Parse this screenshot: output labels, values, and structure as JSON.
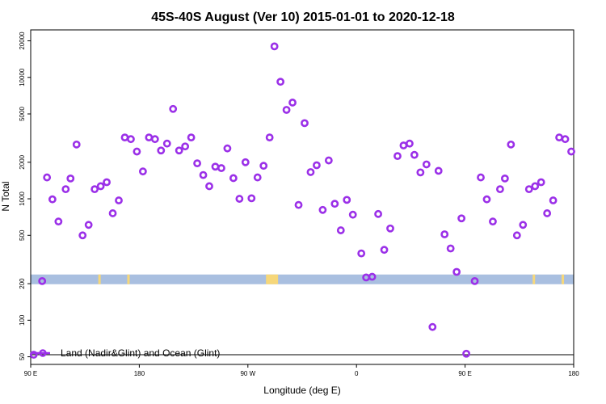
{
  "chart_data": {
    "type": "scatter",
    "title": "45S-40S August (Ver 10)   2015-01-01 to 2020-12-18",
    "xlabel": "Longitude (deg E)",
    "ylabel": "N Total",
    "x_ticks": [
      {
        "value": 90,
        "label": "90 E"
      },
      {
        "value": 180,
        "label": "180"
      },
      {
        "value": 270,
        "label": "90 W"
      },
      {
        "value": 360,
        "label": "0"
      },
      {
        "value": 450,
        "label": "90 E"
      },
      {
        "value": 540,
        "label": "180"
      }
    ],
    "xlim": [
      90,
      540
    ],
    "y_scale": "log",
    "y_ticks": [
      50,
      100,
      200,
      500,
      1000,
      2000,
      5000,
      10000,
      20000
    ],
    "ylim": [
      46,
      23500
    ],
    "x_unit": "deg E, continuous across 360",
    "point_color": "#9b30e8",
    "series": [
      {
        "name": "Land (Nadir&Glint) and Ocean (Glint)",
        "color": "#9b30e8",
        "points": [
          {
            "x": 92.5,
            "y": 52
          },
          {
            "x": 99.5,
            "y": 210
          },
          {
            "x": 103.5,
            "y": 1500
          },
          {
            "x": 108,
            "y": 990
          },
          {
            "x": 113,
            "y": 650
          },
          {
            "x": 119,
            "y": 1200
          },
          {
            "x": 123,
            "y": 1470
          },
          {
            "x": 128,
            "y": 2800
          },
          {
            "x": 133,
            "y": 500
          },
          {
            "x": 138,
            "y": 610
          },
          {
            "x": 143,
            "y": 1200
          },
          {
            "x": 148,
            "y": 1270
          },
          {
            "x": 153,
            "y": 1370
          },
          {
            "x": 158,
            "y": 760
          },
          {
            "x": 163,
            "y": 970
          },
          {
            "x": 168,
            "y": 3200
          },
          {
            "x": 173,
            "y": 3100
          },
          {
            "x": 178,
            "y": 2450
          },
          {
            "x": 183,
            "y": 1680
          },
          {
            "x": 188,
            "y": 3200
          },
          {
            "x": 193,
            "y": 3100
          },
          {
            "x": 198,
            "y": 2500
          },
          {
            "x": 203,
            "y": 2850
          },
          {
            "x": 208,
            "y": 5500
          },
          {
            "x": 213,
            "y": 2500
          },
          {
            "x": 218,
            "y": 2700
          },
          {
            "x": 223,
            "y": 3200
          },
          {
            "x": 228,
            "y": 1960
          },
          {
            "x": 233,
            "y": 1570
          },
          {
            "x": 238,
            "y": 1270
          },
          {
            "x": 243,
            "y": 1840
          },
          {
            "x": 248,
            "y": 1790
          },
          {
            "x": 253,
            "y": 2600
          },
          {
            "x": 258,
            "y": 1480
          },
          {
            "x": 263,
            "y": 1000
          },
          {
            "x": 268,
            "y": 2000
          },
          {
            "x": 273,
            "y": 1010
          },
          {
            "x": 278,
            "y": 1500
          },
          {
            "x": 283,
            "y": 1870
          },
          {
            "x": 288,
            "y": 3200
          },
          {
            "x": 292,
            "y": 18000
          },
          {
            "x": 297,
            "y": 9200
          },
          {
            "x": 302,
            "y": 5400
          },
          {
            "x": 307,
            "y": 6200
          },
          {
            "x": 312,
            "y": 890
          },
          {
            "x": 317,
            "y": 4200
          },
          {
            "x": 322,
            "y": 1660
          },
          {
            "x": 327,
            "y": 1890
          },
          {
            "x": 332,
            "y": 810
          },
          {
            "x": 337,
            "y": 2070
          },
          {
            "x": 342,
            "y": 910
          },
          {
            "x": 347,
            "y": 550
          },
          {
            "x": 352,
            "y": 980
          },
          {
            "x": 357,
            "y": 740
          },
          {
            "x": 364,
            "y": 355
          },
          {
            "x": 368,
            "y": 225
          },
          {
            "x": 373,
            "y": 228
          },
          {
            "x": 378,
            "y": 750
          },
          {
            "x": 383,
            "y": 380
          },
          {
            "x": 388,
            "y": 570
          },
          {
            "x": 394,
            "y": 2250
          },
          {
            "x": 399,
            "y": 2750
          },
          {
            "x": 404,
            "y": 2850
          },
          {
            "x": 408,
            "y": 2300
          },
          {
            "x": 413,
            "y": 1650
          },
          {
            "x": 418,
            "y": 1920
          },
          {
            "x": 423,
            "y": 88
          },
          {
            "x": 428,
            "y": 1700
          },
          {
            "x": 433,
            "y": 510
          },
          {
            "x": 438,
            "y": 390
          },
          {
            "x": 443,
            "y": 250
          },
          {
            "x": 447,
            "y": 690
          },
          {
            "x": 451,
            "y": 53
          },
          {
            "x": 458,
            "y": 210
          },
          {
            "x": 463,
            "y": 1500
          },
          {
            "x": 468,
            "y": 990
          },
          {
            "x": 473,
            "y": 650
          },
          {
            "x": 479,
            "y": 1200
          },
          {
            "x": 483,
            "y": 1470
          },
          {
            "x": 488,
            "y": 2800
          },
          {
            "x": 493,
            "y": 500
          },
          {
            "x": 498,
            "y": 610
          },
          {
            "x": 503,
            "y": 1200
          },
          {
            "x": 508,
            "y": 1270
          },
          {
            "x": 513,
            "y": 1370
          },
          {
            "x": 518,
            "y": 760
          },
          {
            "x": 523,
            "y": 970
          },
          {
            "x": 528,
            "y": 3200
          },
          {
            "x": 533,
            "y": 3100
          },
          {
            "x": 538,
            "y": 2450
          }
        ]
      }
    ],
    "land_strip": {
      "y_range": [
        198,
        238
      ],
      "ocean_color": "#a9bfe0",
      "land_color": "#f6d77a",
      "land_spans": [
        [
          146,
          148
        ],
        [
          170,
          172
        ],
        [
          285,
          295
        ],
        [
          506,
          508
        ],
        [
          530,
          532
        ]
      ]
    },
    "legend": {
      "placement": "bottom-left",
      "marker_color": "#9b30e8"
    },
    "grid": false
  }
}
